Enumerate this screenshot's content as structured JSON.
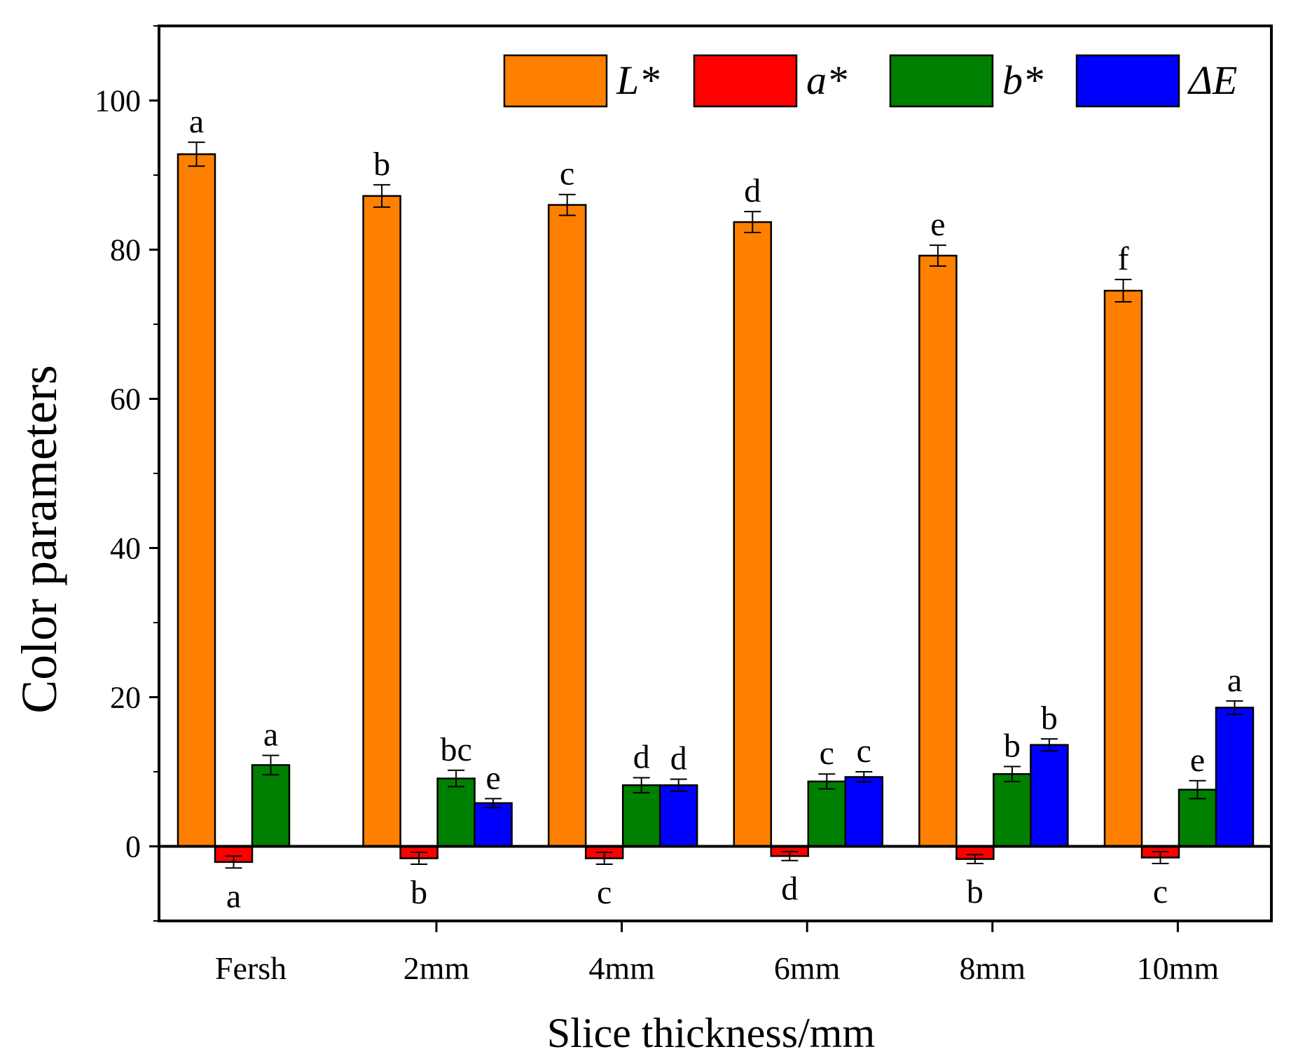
{
  "chart_data": {
    "type": "bar",
    "title": "",
    "xlabel": "Slice thickness/mm",
    "ylabel": "Color parameters",
    "ylim": [
      -10,
      110
    ],
    "yticks": [
      0,
      20,
      40,
      60,
      80,
      100
    ],
    "grid": false,
    "legend_position": "top-right",
    "categories": [
      "Fersh",
      "2mm",
      "4mm",
      "6mm",
      "8mm",
      "10mm"
    ],
    "series": [
      {
        "name": "L*",
        "color": "#ff8000",
        "values": [
          92.8,
          87.2,
          86.0,
          83.7,
          79.2,
          74.5
        ],
        "errors": [
          1.6,
          1.5,
          1.4,
          1.4,
          1.4,
          1.5
        ],
        "labels": [
          "a",
          "b",
          "c",
          "d",
          "e",
          "f"
        ]
      },
      {
        "name": "a*",
        "color": "#ff0000",
        "values": [
          -2.1,
          -1.6,
          -1.6,
          -1.3,
          -1.7,
          -1.5
        ],
        "errors": [
          0.8,
          0.8,
          0.8,
          0.6,
          0.6,
          0.8
        ],
        "labels": [
          "a",
          "b",
          "c",
          "d",
          "b",
          "c"
        ]
      },
      {
        "name": "b*",
        "color": "#008000",
        "values": [
          10.9,
          9.1,
          8.2,
          8.7,
          9.7,
          7.6
        ],
        "errors": [
          1.3,
          1.1,
          1.0,
          1.0,
          1.0,
          1.2
        ],
        "labels": [
          "a",
          "bc",
          "d",
          "c",
          "b",
          "e"
        ]
      },
      {
        "name": "ΔE",
        "color": "#0000ff",
        "values": [
          null,
          5.8,
          8.2,
          9.3,
          13.6,
          18.6
        ],
        "errors": [
          null,
          0.6,
          0.8,
          0.7,
          0.8,
          0.9
        ],
        "labels": [
          "",
          "e",
          "d",
          "c",
          "b",
          "a"
        ]
      }
    ]
  }
}
